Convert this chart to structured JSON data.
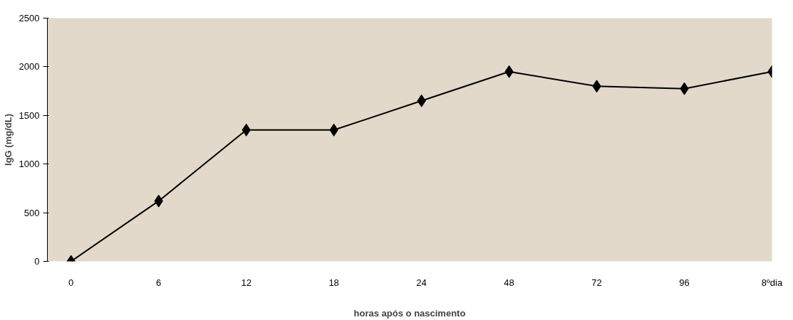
{
  "chart_data": {
    "type": "line",
    "xlabel": "horas após o nascimento",
    "ylabel": "IgG (mg/dL)",
    "categories": [
      "0",
      "6",
      "12",
      "18",
      "24",
      "48",
      "72",
      "96",
      "8ºdia"
    ],
    "series": [
      {
        "color": "#000000",
        "values": [
          0,
          620,
          1350,
          1350,
          1650,
          1950,
          1800,
          1775,
          1950
        ]
      }
    ],
    "ylim": [
      0,
      2500
    ],
    "yticks": [
      0,
      500,
      1000,
      1500,
      2000,
      2500
    ],
    "grid": false,
    "marker": "diamond",
    "line_style": "solid"
  }
}
